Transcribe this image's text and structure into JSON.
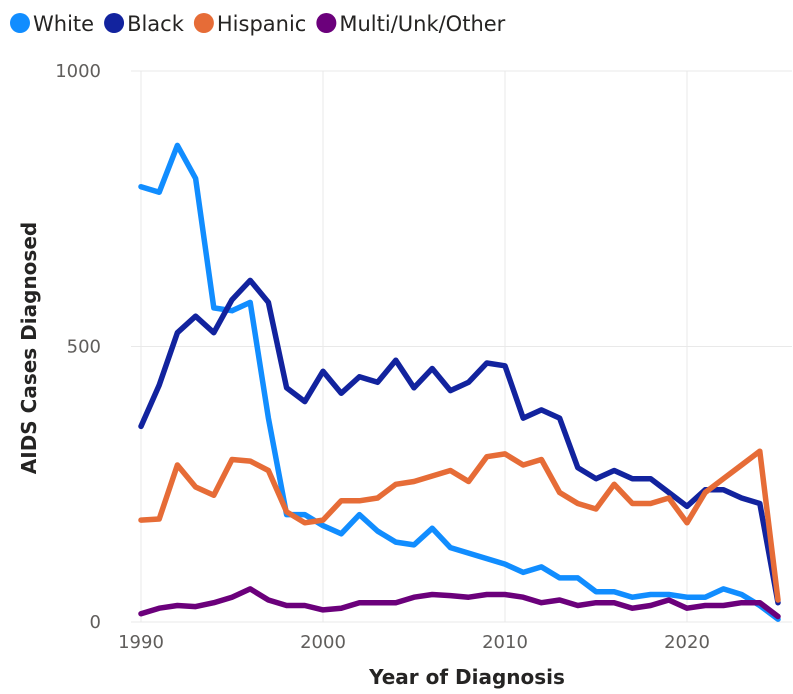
{
  "chart_data": {
    "type": "line",
    "xlabel": "Year of Diagnosis",
    "ylabel": "AIDS Cases Diagnosed",
    "xlim": [
      1990,
      2025
    ],
    "ylim": [
      0,
      1000
    ],
    "x_ticks": [
      1990,
      2000,
      2010,
      2020
    ],
    "y_ticks": [
      0,
      500,
      1000
    ],
    "grid": true,
    "legend_position": "top-left",
    "x": [
      1990,
      1991,
      1992,
      1993,
      1994,
      1995,
      1996,
      1997,
      1998,
      1999,
      2000,
      2001,
      2002,
      2003,
      2004,
      2005,
      2006,
      2007,
      2008,
      2009,
      2010,
      2011,
      2012,
      2013,
      2014,
      2015,
      2016,
      2017,
      2018,
      2019,
      2020,
      2021,
      2022,
      2023,
      2024,
      2025
    ],
    "series": [
      {
        "name": "White",
        "color": "#118dff",
        "values": [
          790,
          780,
          865,
          805,
          570,
          565,
          580,
          370,
          195,
          195,
          175,
          160,
          195,
          165,
          145,
          140,
          170,
          135,
          125,
          115,
          105,
          90,
          100,
          80,
          80,
          55,
          55,
          45,
          50,
          50,
          45,
          45,
          60,
          50,
          30,
          5
        ]
      },
      {
        "name": "Black",
        "color": "#12239e",
        "values": [
          355,
          430,
          525,
          555,
          525,
          585,
          620,
          580,
          425,
          400,
          455,
          415,
          445,
          435,
          475,
          425,
          460,
          420,
          435,
          470,
          465,
          370,
          385,
          370,
          280,
          260,
          275,
          260,
          260,
          235,
          210,
          240,
          240,
          225,
          215,
          35
        ]
      },
      {
        "name": "Hispanic",
        "color": "#e66c37",
        "values": [
          185,
          187,
          285,
          245,
          230,
          295,
          292,
          275,
          200,
          180,
          185,
          220,
          220,
          225,
          250,
          255,
          265,
          275,
          255,
          300,
          305,
          285,
          295,
          235,
          215,
          205,
          250,
          215,
          215,
          225,
          180,
          235,
          260,
          285,
          310,
          40
        ]
      },
      {
        "name": "Multi/Unk/Other",
        "color": "#6b007b",
        "values": [
          15,
          25,
          30,
          28,
          35,
          45,
          60,
          40,
          30,
          30,
          22,
          25,
          35,
          35,
          35,
          45,
          50,
          48,
          45,
          50,
          50,
          45,
          35,
          40,
          30,
          35,
          35,
          25,
          30,
          40,
          25,
          30,
          30,
          35,
          35,
          10
        ]
      }
    ]
  }
}
